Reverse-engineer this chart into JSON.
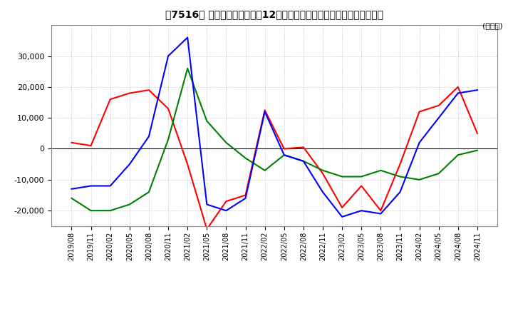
{
  "title": "【7516】 キャッシュフローの12か月移動合計の対前年同期増減額の推移",
  "ylabel": "(百万円)",
  "ylim": [
    -25000,
    40000
  ],
  "yticks": [
    -20000,
    -10000,
    0,
    10000,
    20000,
    30000
  ],
  "colors": {
    "operating": "#FF0000",
    "investing": "#008000",
    "free": "#0000FF"
  },
  "dates": [
    "2019/08",
    "2019/11",
    "2020/02",
    "2020/05",
    "2020/08",
    "2020/11",
    "2021/02",
    "2021/05",
    "2021/08",
    "2021/11",
    "2022/02",
    "2022/05",
    "2022/08",
    "2022/11",
    "2023/02",
    "2023/05",
    "2023/08",
    "2023/11",
    "2024/02",
    "2024/05",
    "2024/08",
    "2024/11"
  ],
  "operating_cf": [
    2000,
    1000,
    16000,
    18000,
    19000,
    13000,
    -5000,
    -26000,
    -17000,
    -15000,
    12500,
    0,
    500,
    -8000,
    -19000,
    -12000,
    -20000,
    -5000,
    12000,
    14000,
    20000,
    5000
  ],
  "investing_cf": [
    -16000,
    -20000,
    -20000,
    -18000,
    -14000,
    3000,
    26000,
    9000,
    2000,
    -3000,
    -7000,
    -2000,
    -4000,
    -7000,
    -9000,
    -9000,
    -7000,
    -9000,
    -10000,
    -8000,
    -2000,
    -500
  ],
  "free_cf": [
    -13000,
    -12000,
    -12000,
    -5000,
    4000,
    30000,
    36000,
    -18000,
    -20000,
    -16000,
    12000,
    -2000,
    -4000,
    -14000,
    -22000,
    -20000,
    -21000,
    -14000,
    2000,
    10000,
    18000,
    19000
  ],
  "background_color": "#ffffff",
  "grid_color": "#aaaaaa"
}
